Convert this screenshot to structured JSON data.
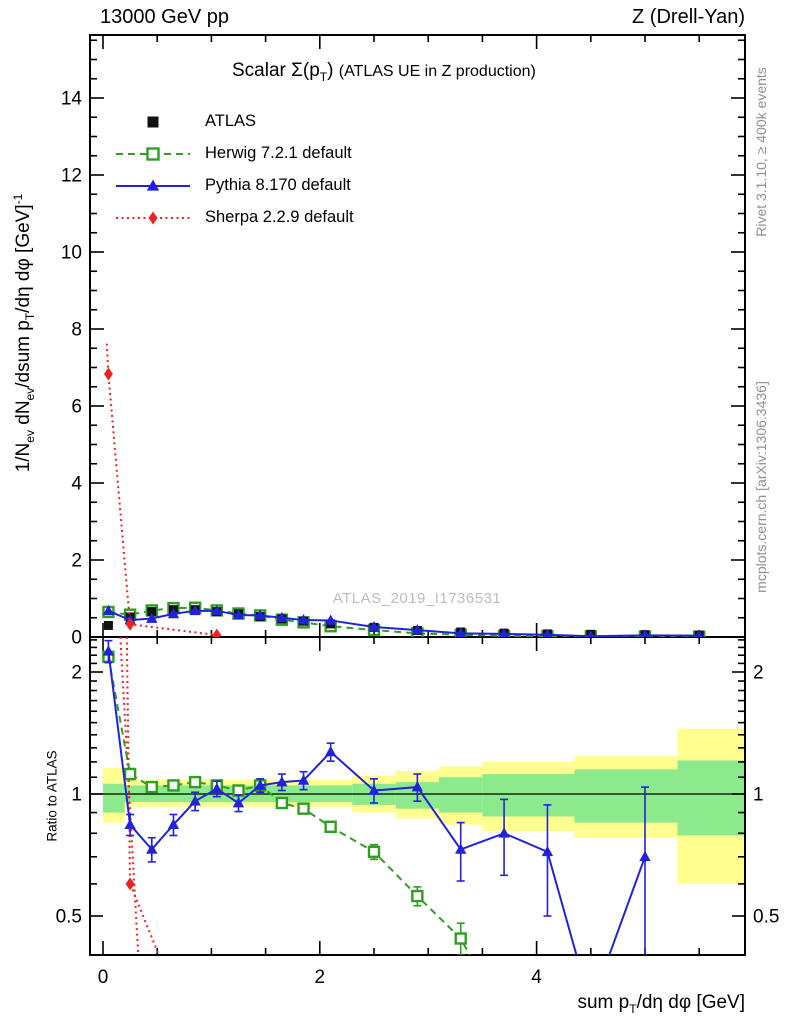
{
  "header": {
    "left": "13000 GeV pp",
    "right": "Z (Drell-Yan)"
  },
  "plot": {
    "title": {
      "t1": "Scalar Σ(p",
      "tsub": "T",
      "t2": ")",
      "t3": "(ATLAS UE in Z production)"
    },
    "watermark": "ATLAS_2019_I1736531",
    "side_notes": {
      "top": "Rivet 3.1.10, ≥ 400k events",
      "bottom": "mcplots.cern.ch [arXiv:1306.3436]"
    }
  },
  "axes": {
    "ylabel_main": {
      "p1": "1/N",
      "s1": "ev",
      "p2": " dN",
      "s2": "ev",
      "p3": "/dsum p",
      "s3": "T",
      "p4": "/dη dφ  [GeV]",
      "sup": "-1"
    },
    "ylabel_ratio": "Ratio to ATLAS",
    "xlabel": {
      "p1": "sum p",
      "s1": "T",
      "p2": "/dη dφ [GeV]"
    }
  },
  "chart_data": {
    "type": "scatter",
    "title": "Scalar Σ(pT) (ATLAS UE in Z production)",
    "xlim": [
      -0.12,
      5.92
    ],
    "ylim_main": [
      0,
      15.6
    ],
    "ylim_ratio": [
      0.4,
      2.44
    ],
    "ratio_scale": "log",
    "x": [
      0.05,
      0.25,
      0.45,
      0.65,
      0.85,
      1.05,
      1.25,
      1.45,
      1.65,
      1.85,
      2.1,
      2.5,
      2.9,
      3.3,
      3.7,
      4.1,
      4.5,
      5.0,
      5.5
    ],
    "series": [
      {
        "name": "ATLAS",
        "color": "#111111",
        "marker": "square-filled",
        "line": "none",
        "values_main": [
          0.3,
          0.52,
          0.66,
          0.71,
          0.71,
          0.66,
          0.6,
          0.53,
          0.47,
          0.41,
          0.34,
          0.25,
          0.17,
          0.13,
          0.1,
          0.08,
          0.07,
          0.06,
          0.05
        ]
      },
      {
        "name": "Herwig 7.2.1 default",
        "color": "#2f9e22",
        "marker": "square-open",
        "line": "dashed",
        "values_main": [
          0.65,
          0.58,
          0.69,
          0.75,
          0.76,
          0.69,
          0.61,
          0.56,
          0.45,
          0.38,
          0.28,
          0.18,
          0.095,
          0.057,
          0.028,
          0.02,
          0.015,
          0.01,
          0.008
        ],
        "ratio": [
          2.18,
          1.12,
          1.04,
          1.05,
          1.07,
          1.05,
          1.02,
          1.05,
          0.95,
          0.92,
          0.83,
          0.72,
          0.56,
          0.44,
          0.28,
          null,
          null,
          null,
          null
        ],
        "ratio_err": [
          0.07,
          0.035,
          0.025,
          0.02,
          0.02,
          0.02,
          0.02,
          0.02,
          0.02,
          0.02,
          0.025,
          0.03,
          0.03,
          0.04,
          0,
          0,
          0,
          0,
          0
        ]
      },
      {
        "name": "Pythia 8.170 default",
        "color": "#2222dd",
        "marker": "triangle-filled",
        "line": "solid",
        "values_main": [
          0.68,
          0.44,
          0.48,
          0.6,
          0.68,
          0.68,
          0.57,
          0.56,
          0.5,
          0.44,
          0.43,
          0.26,
          0.18,
          0.095,
          0.08,
          0.058,
          0.021,
          0.042,
          0.036
        ],
        "ratio": [
          2.25,
          0.84,
          0.73,
          0.84,
          0.96,
          1.03,
          0.95,
          1.05,
          1.07,
          1.08,
          1.27,
          1.02,
          1.04,
          0.73,
          0.8,
          0.72,
          0.3,
          0.7,
          null
        ],
        "ratio_err": [
          0.14,
          0.05,
          0.05,
          0.05,
          0.05,
          0.045,
          0.045,
          0.04,
          0.05,
          0.055,
          0.065,
          0.07,
          0.08,
          0.12,
          0.17,
          0.22,
          0,
          0.34,
          0
        ]
      },
      {
        "name": "Sherpa 2.2.9 default",
        "color": "#ee2222",
        "marker": "diamond-filled",
        "line": "dotted",
        "points_main": [
          [
            0.05,
            6.83
          ],
          [
            0.25,
            0.33
          ],
          [
            1.05,
            0.05
          ]
        ],
        "line_main": [
          [
            0.035,
            7.62
          ],
          [
            0.05,
            6.83
          ],
          [
            0.25,
            0.33
          ],
          [
            1.05,
            0.05
          ]
        ],
        "ratio_points": [
          [
            0.25,
            0.6
          ]
        ],
        "ratio_lines": [
          [
            [
              0.16,
              2.44
            ],
            [
              0.33,
              0.38
            ]
          ],
          [
            [
              0.22,
              2.44
            ],
            [
              0.25,
              0.6
            ],
            [
              0.55,
              0.38
            ]
          ]
        ]
      }
    ],
    "ratio_bands": {
      "yellow": "#ffff8f",
      "green": "#8ce98c",
      "bins": [
        {
          "x0": 0.0,
          "x1": 0.2,
          "ylo": 0.85,
          "yhi": 1.16,
          "glo": 0.9,
          "ghi": 1.06
        },
        {
          "x0": 0.2,
          "x1": 2.3,
          "ylo": 0.93,
          "yhi": 1.085,
          "glo": 0.955,
          "ghi": 1.05
        },
        {
          "x0": 2.3,
          "x1": 2.7,
          "ylo": 0.9,
          "yhi": 1.11,
          "glo": 0.94,
          "ghi": 1.06
        },
        {
          "x0": 2.7,
          "x1": 3.1,
          "ylo": 0.87,
          "yhi": 1.14,
          "glo": 0.92,
          "ghi": 1.07
        },
        {
          "x0": 3.1,
          "x1": 3.5,
          "ylo": 0.84,
          "yhi": 1.17,
          "glo": 0.9,
          "ghi": 1.1
        },
        {
          "x0": 3.5,
          "x1": 4.35,
          "ylo": 0.81,
          "yhi": 1.2,
          "glo": 0.88,
          "ghi": 1.12
        },
        {
          "x0": 4.35,
          "x1": 5.3,
          "ylo": 0.78,
          "yhi": 1.24,
          "glo": 0.85,
          "ghi": 1.15
        },
        {
          "x0": 5.3,
          "x1": 5.92,
          "ylo": 0.6,
          "yhi": 1.45,
          "glo": 0.79,
          "ghi": 1.21
        }
      ]
    },
    "ticks": {
      "main_y": [
        {
          "v": 0,
          "t": "0"
        },
        {
          "v": 2,
          "t": "2"
        },
        {
          "v": 4,
          "t": "4"
        },
        {
          "v": 6,
          "t": "6"
        },
        {
          "v": 8,
          "t": "8"
        },
        {
          "v": 10,
          "t": "10"
        },
        {
          "v": 12,
          "t": "12"
        },
        {
          "v": 14,
          "t": "14"
        }
      ],
      "ratio_y": [
        {
          "v": 0.5,
          "t": "0.5"
        },
        {
          "v": 1,
          "t": "1"
        },
        {
          "v": 2,
          "t": "2"
        }
      ],
      "x": [
        {
          "v": 0,
          "t": "0"
        },
        {
          "v": 2,
          "t": "2"
        },
        {
          "v": 4,
          "t": "4"
        }
      ]
    }
  }
}
